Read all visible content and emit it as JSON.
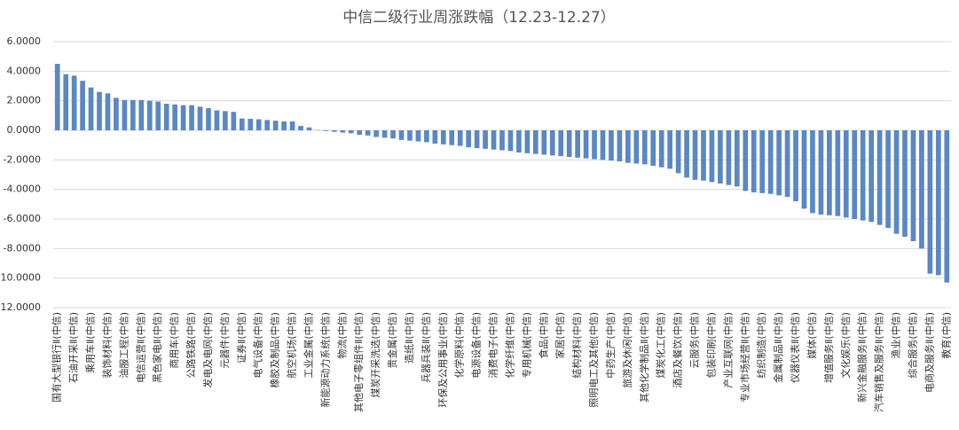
{
  "chart_data": {
    "type": "bar",
    "title": "中信二级行业周涨跌幅（12.23-12.27）",
    "categories": [
      "国有大型银行Ⅱ(中信)",
      null,
      "石油开采Ⅱ(中信)",
      null,
      "乘用车Ⅱ(中信)",
      null,
      "装饰材料(中信)",
      null,
      "油服工程(中信)",
      null,
      "电信运营Ⅱ(中信)",
      null,
      "黑色家电Ⅱ(中信)",
      null,
      "商用车(中信)",
      null,
      "公路铁路(中信)",
      null,
      "发电及电网(中信)",
      null,
      "元器件(中信)",
      null,
      "证券Ⅱ(中信)",
      null,
      "电气设备(中信)",
      null,
      "橡胶及制品(中信)",
      null,
      "航空机场(中信)",
      null,
      "工业金属(中信)",
      null,
      "新能源动力系统(中信)",
      null,
      "物流(中信)",
      null,
      "其他电子零组件Ⅱ(中信)",
      null,
      "煤炭开采洗选(中信)",
      null,
      "贵金属(中信)",
      null,
      "造纸Ⅱ(中信)",
      null,
      "兵器兵装Ⅱ(中信)",
      null,
      "环保及公用事业(中信)",
      null,
      "化学原料(中信)",
      null,
      "电源设备(中信)",
      null,
      "消费电子(中信)",
      null,
      "化学纤维(中信)",
      null,
      "专用机械(中信)",
      null,
      "食品(中信)",
      null,
      "家居(中信)",
      null,
      "结构材料(中信)",
      null,
      "照明电工及其他(中信)",
      null,
      "中药生产(中信)",
      null,
      "旅游及休闲(中信)",
      null,
      "其他化学制品Ⅱ(中信)",
      null,
      "煤炭化工(中信)",
      null,
      "酒店及餐饮(中信)",
      null,
      "云服务(中信)",
      null,
      "包装印刷(中信)",
      null,
      "产业互联网(中信)",
      null,
      "专业市场经营Ⅱ(中信)",
      null,
      "纺织制造(中信)",
      null,
      "金属制品Ⅱ(中信)",
      null,
      "仪器仪表Ⅱ(中信)",
      null,
      "媒体(中信)",
      null,
      "增值服务Ⅱ(中信)",
      null,
      "文化娱乐(中信)",
      null,
      "新兴金融服务Ⅱ(中信)",
      null,
      "汽车销售及服务Ⅱ(中信)",
      null,
      "渔业(中信)",
      null,
      "综合服务(中信)",
      null,
      "电商及服务Ⅱ(中信)",
      null,
      "教育(中信)"
    ],
    "values": [
      4.5,
      3.8,
      3.7,
      3.35,
      2.9,
      2.6,
      2.5,
      2.2,
      2.05,
      2.05,
      2.05,
      2.0,
      1.95,
      1.8,
      1.75,
      1.7,
      1.7,
      1.6,
      1.5,
      1.35,
      1.3,
      1.25,
      0.8,
      0.78,
      0.75,
      0.7,
      0.65,
      0.6,
      0.6,
      0.3,
      0.2,
      0.02,
      -0.05,
      -0.1,
      -0.15,
      -0.2,
      -0.3,
      -0.35,
      -0.45,
      -0.5,
      -0.55,
      -0.65,
      -0.7,
      -0.75,
      -0.8,
      -0.9,
      -0.95,
      -1.0,
      -1.05,
      -1.15,
      -1.2,
      -1.25,
      -1.3,
      -1.35,
      -1.4,
      -1.5,
      -1.55,
      -1.6,
      -1.65,
      -1.7,
      -1.75,
      -1.8,
      -1.85,
      -1.9,
      -1.95,
      -2.0,
      -2.05,
      -2.1,
      -2.2,
      -2.25,
      -2.3,
      -2.4,
      -2.5,
      -2.6,
      -2.9,
      -3.2,
      -3.35,
      -3.4,
      -3.5,
      -3.6,
      -3.7,
      -3.8,
      -4.1,
      -4.2,
      -4.25,
      -4.3,
      -4.4,
      -4.5,
      -4.8,
      -5.3,
      -5.6,
      -5.7,
      -5.75,
      -5.8,
      -5.9,
      -6.0,
      -6.1,
      -6.2,
      -6.4,
      -6.6,
      -7.0,
      -7.2,
      -7.5,
      -8.0,
      -9.7,
      -9.8,
      -10.3
    ],
    "color": "#5a87c5",
    "ylim": [
      -12,
      6
    ],
    "yticks": [
      {
        "value": 6,
        "label": "6.0000"
      },
      {
        "value": 4,
        "label": "4.0000"
      },
      {
        "value": 2,
        "label": "2.0000"
      },
      {
        "value": 0,
        "label": "0.0000"
      },
      {
        "value": -2,
        "label": "-2.0000"
      },
      {
        "value": -4,
        "label": "-4.0000"
      },
      {
        "value": -6,
        "label": "-6.0000"
      },
      {
        "value": -8,
        "label": "-8.0000"
      },
      {
        "value": -10,
        "label": "-10.0000"
      },
      {
        "value": -12,
        "label": "-12.0000"
      }
    ],
    "grid": true
  }
}
